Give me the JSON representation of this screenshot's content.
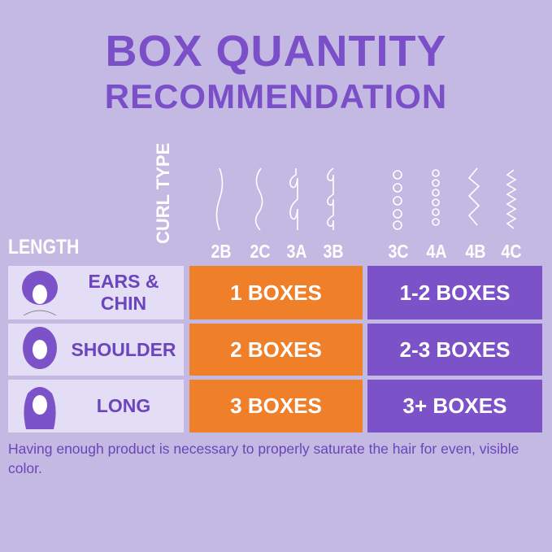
{
  "title": {
    "line1": "BOX QUANTITY",
    "line2": "RECOMMENDATION"
  },
  "headers": {
    "length": "LENGTH",
    "curl_type": "CURL TYPE"
  },
  "curl_types": [
    "2B",
    "2C",
    "3A",
    "3B",
    "3C",
    "4A",
    "4B",
    "4C"
  ],
  "rows": [
    {
      "length": "EARS & CHIN",
      "group1": "1 BOXES",
      "group2": "1-2 BOXES"
    },
    {
      "length": "SHOULDER",
      "group1": "2 BOXES",
      "group2": "2-3 BOXES"
    },
    {
      "length": "LONG",
      "group1": "3 BOXES",
      "group2": "3+ BOXES"
    }
  ],
  "footer": "Having enough product is necessary to properly saturate the hair for even, visible color.",
  "colors": {
    "background": "#c4b9e3",
    "accent_purple": "#7b52c7",
    "orange": "#f07f2a",
    "length_cell": "#e4ddf6"
  }
}
